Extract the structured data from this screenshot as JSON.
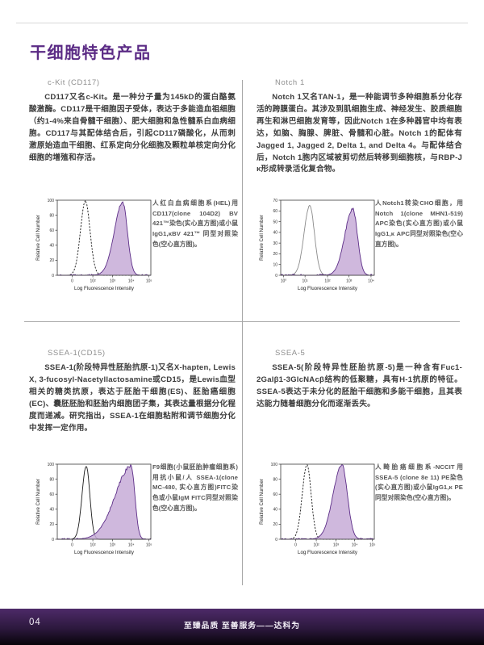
{
  "page": {
    "title": "干细胞特色产品",
    "page_number": "04",
    "footer_slogan": "至臻品质 至善服务——达科为"
  },
  "colors": {
    "accent_purple": "#5b2b85",
    "histogram_fill": "#c7abd7",
    "histogram_stroke": "#5c2d87",
    "divider_gray": "#a8a8a8",
    "footer_top": "#4d2a68",
    "footer_bottom": "#070409"
  },
  "sections": [
    {
      "header": "c-Kit (CD117)",
      "body": "CD117又名c-Kit。是一种分子量为145kD的蛋白酪氨酸激酶。CD117是干细胞因子受体，表达于多能造血祖细胞（约1-4%来自骨髓干细胞）、肥大细胞和急性髓系白血病细胞。CD117与其配体结合后，引起CD117磷酸化，从而刺激原始造血干细胞、红系定向分化细胞及颗粒单核定向分化细胞的增殖和存活。",
      "caption": "人红白血病细胞系(HEL)用CD117(clone 104D2) BV 421™染色(实心直方图)或小鼠IgG1,κBV 421™ 同型对照染色(空心直方图)。"
    },
    {
      "header": "Notch 1",
      "body": "Notch 1又名TAN-1，是一种能调节多种细胞系分化存活的跨膜蛋白。其涉及到肌细胞生成、神经发生、胶质细胞再生和淋巴细胞发育等，因此Notch 1在多种器官中均有表达，如脑、胸腺、脾脏、骨髓和心脏。Notch 1的配体有Jagged 1, Jagged 2, Delta 1, and Delta 4。与配体结合后，Notch 1胞内区域被剪切然后转移到细胞核，与RBP-J κ形成转录活化复合物。",
      "caption": "人Notch1转染CHO细胞，用Notch 1(clone MHN1-519) APC染色(实心直方图)或小鼠IgG1,κ APC同型对照染色(空心直方图)。"
    },
    {
      "header": "SSEA-1(CD15)",
      "body": "SSEA-1(阶段特异性胚胎抗原-1)又名X-hapten, Lewis X, 3-fucosyl-Nacetyllactosamine或CD15，是Lewis血型相关的糖类抗原，表达于胚胎干细胞(ES)、胚胎癌细胞(EC)、囊胚胚胎和胚胎内细胞团子集，其表达量根据分化程度而递减。研究指出，SSEA-1在细胞粘附和调节细胞分化中发挥一定作用。",
      "caption": "F9细胞(小鼠胚胎肿瘤细胞系)用抗小鼠/人 SSEA-1(clone MC-480, 实心直方图)FITC染色或小鼠IgM FITC同型对照染色(空心直方图)。"
    },
    {
      "header": "SSEA-5",
      "body": "SSEA-5(阶段特异性胚胎抗原-5)是一种含有Fuc1-2Galβ1-3GlcNAcβ结构的低聚糖，具有H-1抗原的特征。SSEA-5表达于未分化的胚胎干细胞和多能干细胞，且其表达能力随着细胞分化而逐渐丢失。",
      "caption": "人畸胎癌细胞系-NCCIT用SSEA-5 (clone 8e 11) PE染色(实心直方图)或小鼠IgG1,κ PE同型对照染色(空心直方图)。"
    }
  ],
  "chart_data": [
    {
      "type": "histogram-overlay",
      "xlabel": "Log Fluorescence Intensity",
      "ylabel": "Relative Cell Number",
      "ylim": [
        0,
        100
      ],
      "yticks": [
        0,
        20,
        40,
        60,
        80,
        100
      ],
      "xticks": {
        "labels": [
          "0",
          "10²",
          "10³",
          "10⁴",
          "10⁵"
        ],
        "pos": [
          0.16,
          0.38,
          0.59,
          0.79,
          0.98
        ]
      },
      "series": [
        {
          "name": "isotype-control",
          "line": "dashed",
          "color": "#1a1a1a",
          "peak_x": 0.3,
          "sigma_left": 0.052,
          "sigma_right": 0.05,
          "peak_y": 99,
          "jitter": 2
        },
        {
          "name": "cd117-stained",
          "line": "solid",
          "color": "#5c2d87",
          "fill": "#c7abd7",
          "peak_x": 0.7,
          "sigma_left": 0.09,
          "sigma_right": 0.05,
          "peak_y": 97,
          "jitter": 4
        }
      ]
    },
    {
      "type": "histogram-overlay",
      "xlabel": "Log Fluorescence Intensity",
      "ylabel": "Relative Cell Number",
      "ylim": [
        0,
        70
      ],
      "yticks": [
        0,
        10,
        20,
        30,
        40,
        50,
        60,
        70
      ],
      "xticks": {
        "labels": [
          "10⁰",
          "10¹",
          "10²",
          "10³",
          "10⁴"
        ],
        "pos": [
          0.03,
          0.26,
          0.5,
          0.73,
          0.965
        ]
      },
      "series": [
        {
          "name": "isotype-control",
          "line": "solid",
          "color": "#8a8a8a",
          "peak_x": 0.31,
          "sigma_left": 0.06,
          "sigma_right": 0.05,
          "peak_y": 65,
          "jitter": 2
        },
        {
          "name": "notch1-stained",
          "line": "solid",
          "color": "#5c2d87",
          "fill": "#c7abd7",
          "peak_x": 0.77,
          "sigma_left": 0.085,
          "sigma_right": 0.05,
          "peak_y": 62,
          "jitter": 3
        }
      ]
    },
    {
      "type": "histogram-overlay",
      "xlabel": "Log Fluorescence Intensity",
      "ylabel": "Relative Cell Number",
      "ylim": [
        0,
        100
      ],
      "yticks": [
        0,
        20,
        40,
        60,
        80,
        100
      ],
      "xticks": {
        "labels": [
          "0",
          "10²",
          "10³",
          "10⁴",
          "10⁵"
        ],
        "pos": [
          0.16,
          0.38,
          0.59,
          0.79,
          0.98
        ]
      },
      "series": [
        {
          "name": "isotype-control",
          "line": "solid",
          "color": "#1a1a1a",
          "peak_x": 0.31,
          "sigma_left": 0.045,
          "sigma_right": 0.038,
          "peak_y": 98,
          "jitter": 2
        },
        {
          "name": "ssea1-stained",
          "line": "solid",
          "color": "#5c2d87",
          "fill": "#c7abd7",
          "peak_x": 0.79,
          "sigma_left": 0.17,
          "sigma_right": 0.04,
          "peak_y": 97,
          "jitter": 5
        }
      ]
    },
    {
      "type": "histogram-overlay",
      "xlabel": "Log Fluorescence Intensity",
      "ylabel": "Relative Cell Number",
      "ylim": [
        0,
        100
      ],
      "yticks": [
        0,
        20,
        40,
        60,
        80,
        100
      ],
      "xticks": {
        "labels": [
          "0",
          "10²",
          "10³",
          "10⁴",
          "10⁵"
        ],
        "pos": [
          0.16,
          0.38,
          0.59,
          0.79,
          0.98
        ]
      },
      "series": [
        {
          "name": "isotype-control",
          "line": "dashed",
          "color": "#1a1a1a",
          "peak_x": 0.28,
          "sigma_left": 0.05,
          "sigma_right": 0.045,
          "peak_y": 99,
          "jitter": 2
        },
        {
          "name": "ssea5-stained",
          "line": "solid",
          "color": "#5c2d87",
          "fill": "#c7abd7",
          "peak_x": 0.655,
          "sigma_left": 0.095,
          "sigma_right": 0.058,
          "peak_y": 99,
          "jitter": 4
        }
      ]
    }
  ]
}
